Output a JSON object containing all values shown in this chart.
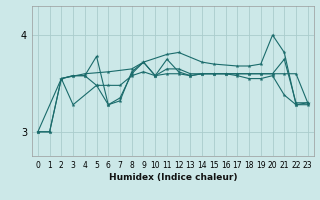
{
  "title": "",
  "xlabel": "Humidex (Indice chaleur)",
  "bg_color": "#cce8e8",
  "line_color": "#1a6b6b",
  "grid_color": "#aacccc",
  "xlim": [
    -0.5,
    23.5
  ],
  "ylim": [
    2.75,
    4.3
  ],
  "yticks": [
    3,
    4
  ],
  "ytick_labels": [
    "3",
    "4"
  ],
  "xticks": [
    0,
    1,
    2,
    3,
    4,
    5,
    6,
    7,
    8,
    9,
    10,
    11,
    12,
    13,
    14,
    15,
    16,
    17,
    18,
    19,
    20,
    21,
    22,
    23
  ],
  "lines": [
    {
      "x": [
        0,
        1,
        2,
        4,
        6,
        8,
        9,
        11,
        12,
        14,
        15,
        17,
        18,
        19,
        20,
        21,
        22,
        23
      ],
      "y": [
        3.0,
        3.0,
        3.55,
        3.6,
        3.62,
        3.65,
        3.72,
        3.8,
        3.82,
        3.72,
        3.7,
        3.68,
        3.68,
        3.7,
        4.0,
        3.82,
        3.28,
        3.28
      ]
    },
    {
      "x": [
        0,
        1,
        2,
        3,
        4,
        5,
        6,
        7,
        8,
        9,
        10,
        11,
        12,
        13,
        14,
        15,
        16,
        17,
        18,
        19,
        20,
        21,
        22,
        23
      ],
      "y": [
        3.0,
        3.0,
        3.55,
        3.58,
        3.58,
        3.48,
        3.48,
        3.48,
        3.58,
        3.62,
        3.58,
        3.65,
        3.65,
        3.6,
        3.6,
        3.6,
        3.6,
        3.6,
        3.6,
        3.6,
        3.6,
        3.6,
        3.6,
        3.3
      ]
    },
    {
      "x": [
        2,
        3,
        4,
        5,
        6,
        7,
        8,
        9,
        10,
        11,
        12,
        13,
        14,
        15,
        16,
        17,
        18,
        19,
        20,
        21,
        22,
        23
      ],
      "y": [
        3.55,
        3.58,
        3.58,
        3.78,
        3.28,
        3.32,
        3.62,
        3.72,
        3.58,
        3.75,
        3.62,
        3.58,
        3.6,
        3.6,
        3.6,
        3.6,
        3.6,
        3.6,
        3.6,
        3.75,
        3.3,
        3.3
      ]
    },
    {
      "x": [
        0,
        2,
        3,
        5,
        6,
        7,
        8,
        9,
        10,
        11,
        12,
        13,
        14,
        15,
        16,
        17,
        18,
        19,
        20,
        21,
        22,
        23
      ],
      "y": [
        3.0,
        3.55,
        3.28,
        3.48,
        3.28,
        3.35,
        3.6,
        3.72,
        3.58,
        3.6,
        3.6,
        3.58,
        3.6,
        3.6,
        3.6,
        3.58,
        3.55,
        3.55,
        3.58,
        3.38,
        3.28,
        3.3
      ]
    }
  ],
  "figsize": [
    3.2,
    2.0
  ],
  "dpi": 100
}
